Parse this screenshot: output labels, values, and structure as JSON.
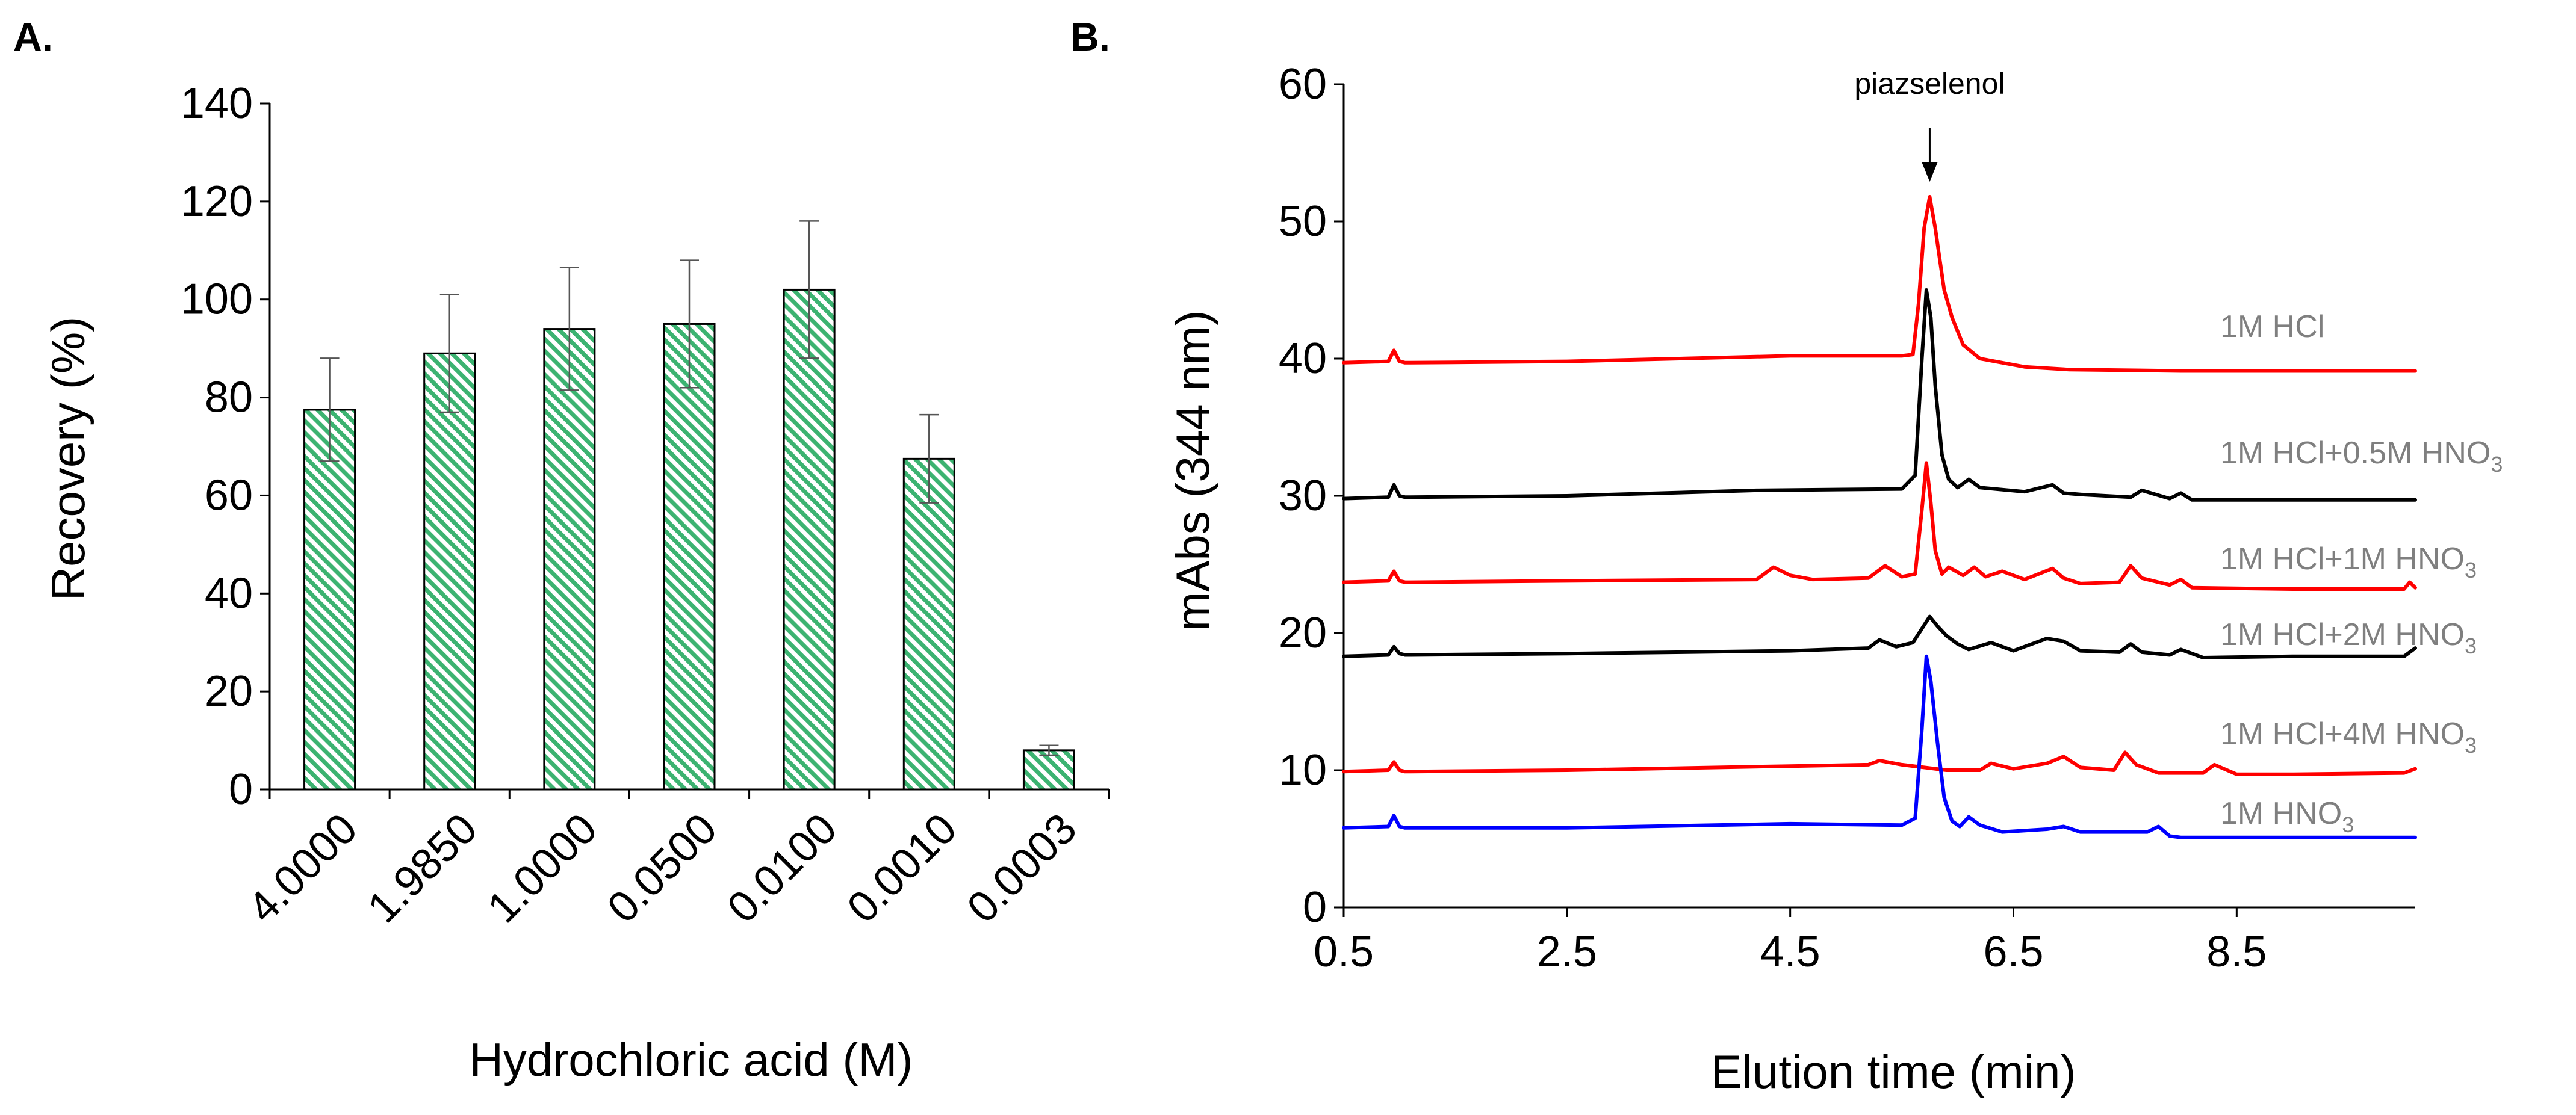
{
  "chart_data": [
    {
      "panel": "A.",
      "type": "bar",
      "title": "",
      "xlabel": "Hydrochloric acid (M)",
      "ylabel": "Recovery (%)",
      "ylim": [
        0,
        140
      ],
      "yticks": [
        "0",
        "20",
        "40",
        "60",
        "80",
        "100",
        "120",
        "140"
      ],
      "categories": [
        "4.0000",
        "1.9850",
        "1.0000",
        "0.0500",
        "0.0100",
        "0.0010",
        "0.0003"
      ],
      "values": [
        77.5,
        89,
        94,
        95,
        102,
        67.5,
        8
      ],
      "errors": [
        10.5,
        12,
        12.5,
        13,
        14,
        9,
        1
      ],
      "bar_fill": "hatched",
      "bar_color": "#3cb371",
      "bar_edge": "#000000",
      "grid": false
    },
    {
      "panel": "B.",
      "type": "line",
      "title": "",
      "xlabel": "Elution time (min)",
      "ylabel": "mAbs (344 nm)",
      "xlim": [
        0.5,
        10.1
      ],
      "ylim": [
        0,
        60
      ],
      "xticks": [
        "0.5",
        "2.5",
        "4.5",
        "6.5",
        "8.5"
      ],
      "yticks": [
        "0",
        "10",
        "20",
        "30",
        "40",
        "50",
        "60"
      ],
      "grid": false,
      "annotation": {
        "text": "piazselenol",
        "x": 5.75,
        "y": 53
      },
      "series": [
        {
          "name": "1M HCl",
          "label_main": "1M HCl",
          "label_sub": "",
          "color": "#ff0000",
          "x": [
            0.5,
            0.9,
            0.95,
            1.0,
            1.05,
            1.1,
            2.5,
            4.5,
            5.5,
            5.6,
            5.65,
            5.7,
            5.75,
            5.8,
            5.88,
            5.95,
            6.05,
            6.2,
            6.6,
            7.0,
            8.0,
            9.0,
            10.0,
            10.1
          ],
          "y": [
            39.7,
            39.8,
            40.6,
            39.8,
            39.7,
            39.7,
            39.8,
            40.2,
            40.2,
            40.3,
            44,
            49.5,
            51.8,
            49.5,
            45,
            43,
            41,
            40,
            39.4,
            39.2,
            39.1,
            39.1,
            39.1,
            39.1
          ]
        },
        {
          "name": "1M HCl+0.5M HNO3",
          "label_main": "1M HCl+0.5M HNO",
          "label_sub": "3",
          "color": "#000000",
          "x": [
            0.5,
            0.9,
            0.95,
            1.0,
            1.05,
            1.1,
            2.5,
            4.2,
            5.5,
            5.62,
            5.68,
            5.72,
            5.76,
            5.8,
            5.86,
            5.92,
            6.0,
            6.1,
            6.2,
            6.6,
            6.85,
            6.95,
            7.1,
            7.55,
            7.65,
            7.9,
            8.0,
            8.1,
            9.0,
            10.0,
            10.1
          ],
          "y": [
            29.8,
            29.9,
            30.8,
            30.0,
            29.9,
            29.9,
            30.0,
            30.4,
            30.5,
            31.5,
            40,
            45,
            43,
            38,
            33,
            31.2,
            30.6,
            31.2,
            30.6,
            30.3,
            30.8,
            30.2,
            30.1,
            29.9,
            30.4,
            29.8,
            30.2,
            29.7,
            29.7,
            29.7,
            29.7
          ]
        },
        {
          "name": "1M HCl+1M HNO3",
          "label_main": "1M HCl+1M HNO",
          "label_sub": "3",
          "color": "#ff0000",
          "x": [
            0.5,
            0.9,
            0.95,
            1.0,
            1.05,
            1.1,
            2.5,
            4.2,
            4.35,
            4.5,
            4.7,
            5.2,
            5.35,
            5.5,
            5.62,
            5.68,
            5.72,
            5.76,
            5.8,
            5.86,
            5.92,
            6.05,
            6.15,
            6.25,
            6.4,
            6.6,
            6.85,
            6.95,
            7.1,
            7.45,
            7.55,
            7.65,
            7.9,
            8.0,
            8.1,
            9.0,
            10.0,
            10.05,
            10.1
          ],
          "y": [
            23.7,
            23.8,
            24.5,
            23.8,
            23.7,
            23.7,
            23.8,
            23.9,
            24.8,
            24.2,
            23.9,
            24.0,
            24.9,
            24.1,
            24.3,
            29,
            32.4,
            29.5,
            26,
            24.3,
            24.8,
            24.2,
            24.8,
            24.1,
            24.5,
            23.9,
            24.7,
            24.0,
            23.6,
            23.7,
            24.9,
            24.0,
            23.5,
            23.9,
            23.3,
            23.2,
            23.2,
            23.7,
            23.3
          ]
        },
        {
          "name": "1M HCl+2M HNO3",
          "label_main": "1M HCl+2M HNO",
          "label_sub": "3",
          "color": "#000000",
          "x": [
            0.5,
            0.9,
            0.95,
            1.0,
            1.05,
            1.1,
            2.5,
            4.5,
            5.2,
            5.3,
            5.45,
            5.6,
            5.75,
            5.82,
            5.9,
            6.0,
            6.1,
            6.3,
            6.5,
            6.8,
            6.95,
            7.1,
            7.45,
            7.55,
            7.65,
            7.9,
            8.0,
            8.2,
            9.0,
            10.0,
            10.1
          ],
          "y": [
            18.3,
            18.4,
            19.0,
            18.5,
            18.4,
            18.4,
            18.5,
            18.7,
            18.9,
            19.5,
            19.0,
            19.3,
            21.2,
            20.5,
            19.8,
            19.2,
            18.8,
            19.3,
            18.7,
            19.6,
            19.4,
            18.7,
            18.6,
            19.2,
            18.6,
            18.4,
            18.8,
            18.2,
            18.3,
            18.3,
            18.9
          ]
        },
        {
          "name": "1M HCl+4M HNO3",
          "label_main": "1M HCl+4M HNO",
          "label_sub": "3",
          "color": "#ff0000",
          "x": [
            0.5,
            0.9,
            0.95,
            1.0,
            1.05,
            1.1,
            2.5,
            4.5,
            5.2,
            5.3,
            5.5,
            5.7,
            5.9,
            6.2,
            6.3,
            6.5,
            6.8,
            6.95,
            7.1,
            7.4,
            7.5,
            7.6,
            7.8,
            8.2,
            8.3,
            8.5,
            9.0,
            10.0,
            10.1
          ],
          "y": [
            9.9,
            10.0,
            10.6,
            10.0,
            9.9,
            9.9,
            10.0,
            10.3,
            10.4,
            10.7,
            10.4,
            10.2,
            10.0,
            10.0,
            10.5,
            10.1,
            10.5,
            11.0,
            10.2,
            10.0,
            11.3,
            10.4,
            9.8,
            9.8,
            10.4,
            9.7,
            9.7,
            9.8,
            10.1
          ]
        },
        {
          "name": "1M HNO3",
          "label_main": "1M HNO",
          "label_sub": "3",
          "color": "#0000ff",
          "x": [
            0.5,
            0.9,
            0.95,
            1.0,
            1.05,
            1.1,
            2.5,
            4.5,
            5.5,
            5.62,
            5.68,
            5.72,
            5.76,
            5.82,
            5.88,
            5.95,
            6.02,
            6.1,
            6.2,
            6.4,
            6.8,
            6.95,
            7.1,
            7.7,
            7.8,
            7.9,
            8.0,
            9.0,
            10.0,
            10.1
          ],
          "y": [
            5.8,
            5.9,
            6.7,
            5.9,
            5.8,
            5.8,
            5.8,
            6.1,
            6.0,
            6.5,
            13,
            18.3,
            16.5,
            12,
            8,
            6.3,
            5.9,
            6.6,
            6.0,
            5.5,
            5.7,
            5.9,
            5.5,
            5.5,
            5.9,
            5.2,
            5.1,
            5.1,
            5.1,
            5.1
          ]
        }
      ]
    }
  ]
}
